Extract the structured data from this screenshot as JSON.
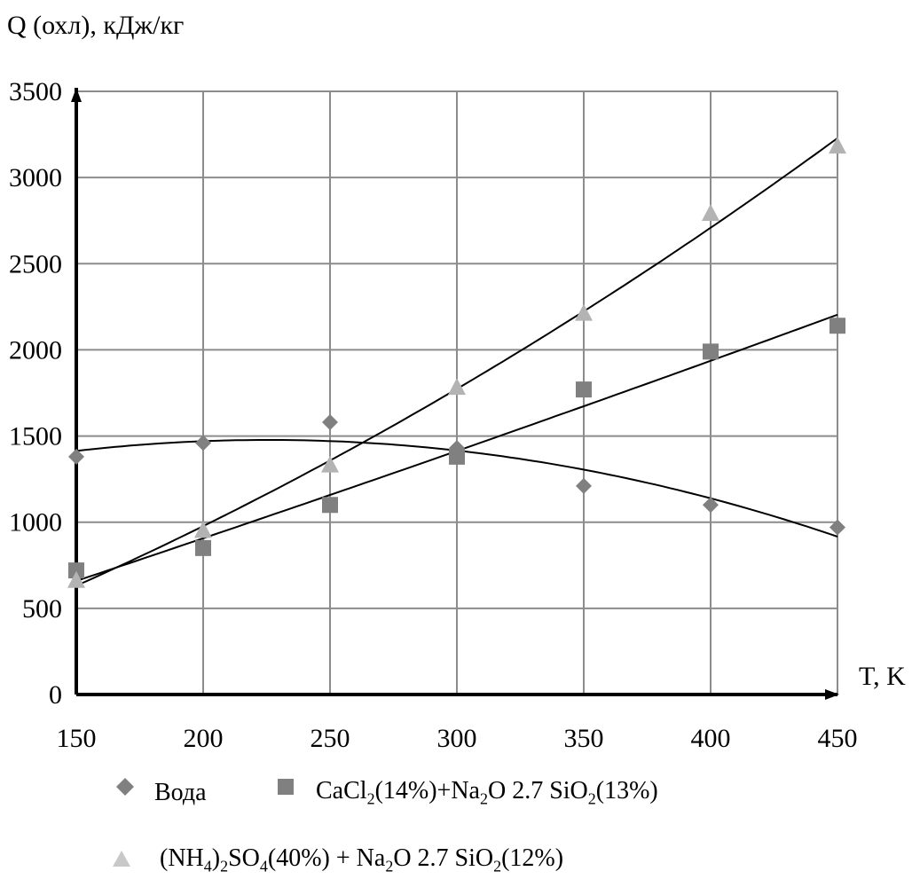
{
  "chart_data": {
    "type": "scatter",
    "ylabel": "Q (охл), кДж/кг",
    "xlabel": "T, K",
    "xlim": [
      150,
      450
    ],
    "ylim": [
      0,
      3500
    ],
    "x_ticks": [
      150,
      200,
      250,
      300,
      350,
      400,
      450
    ],
    "y_ticks": [
      0,
      500,
      1000,
      1500,
      2000,
      2500,
      3000,
      3500
    ],
    "grid": true,
    "legend_position": "bottom",
    "series": [
      {
        "name": "Вода",
        "marker": "diamond",
        "color": "#808080",
        "x": [
          150,
          200,
          250,
          300,
          350,
          400,
          450
        ],
        "y": [
          1380,
          1460,
          1580,
          1430,
          1210,
          1100,
          970
        ],
        "trend": "polynomial"
      },
      {
        "name": "CaCl2(14%)+Na2O 2.7 SiO2(13%)",
        "marker": "square",
        "color": "#808080",
        "x": [
          150,
          200,
          250,
          300,
          350,
          400,
          450
        ],
        "y": [
          720,
          850,
          1100,
          1380,
          1770,
          1990,
          2140
        ],
        "trend": "polynomial"
      },
      {
        "name": "(NH4)2SO4(40%) + Na2O 2.7 SiO2(12%)",
        "marker": "triangle",
        "color": "#b3b3b3",
        "x": [
          150,
          200,
          250,
          300,
          350,
          400,
          450
        ],
        "y": [
          660,
          950,
          1330,
          1780,
          2210,
          2790,
          3180
        ],
        "trend": "polynomial"
      }
    ]
  },
  "legend": {
    "water": "Вода",
    "cacl2": {
      "p1": "CaCl",
      "s1": "2",
      "p2": "(14%)+Na",
      "s2": "2",
      "p3": "O 2.7 SiO",
      "s3": "2",
      "p4": "(13%)"
    },
    "nh4": {
      "p1": "(NH",
      "s1": "4",
      "p2": ")",
      "s2": "2",
      "p3": "SO",
      "s3": "4",
      "p4": "(40%) + Na",
      "s4": "2",
      "p5": "O 2.7 SiO",
      "s5": "2",
      "p6": "(12%)"
    }
  }
}
